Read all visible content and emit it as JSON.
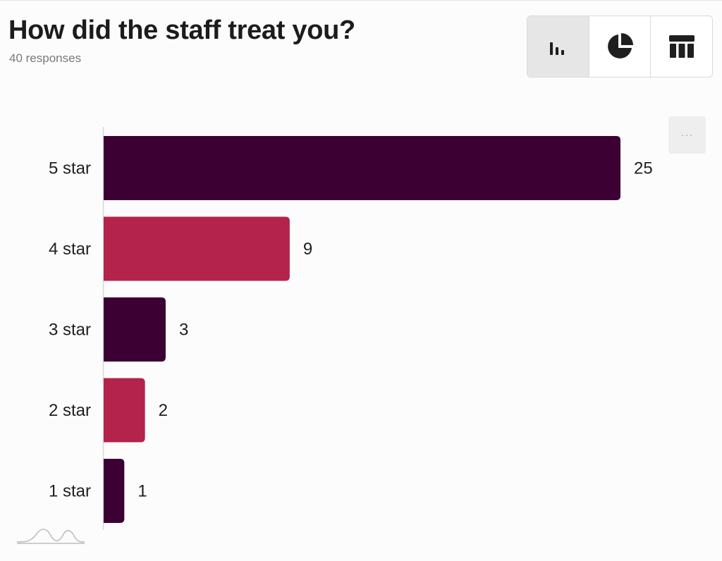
{
  "header": {
    "title": "How did the staff treat you?",
    "subtitle": "40 responses"
  },
  "view_toggle": {
    "options": [
      "bar-chart-icon",
      "pie-chart-icon",
      "table-icon"
    ],
    "active": "bar-chart-icon"
  },
  "more_button": {
    "label": "···"
  },
  "colors": {
    "dark": "#3d0032",
    "accent": "#b4234c",
    "axis": "#d8d8d8"
  },
  "chart_data": {
    "type": "bar",
    "orientation": "horizontal",
    "title": "How did the staff treat you?",
    "subtitle": "40 responses",
    "categories": [
      "5 star",
      "4 star",
      "3 star",
      "2 star",
      "1 star"
    ],
    "values": [
      25,
      9,
      3,
      2,
      1
    ],
    "colors": [
      "#3d0032",
      "#b4234c",
      "#3d0032",
      "#b4234c",
      "#3d0032"
    ],
    "xlim": [
      0,
      25
    ],
    "grid": false,
    "data_labels": true
  }
}
